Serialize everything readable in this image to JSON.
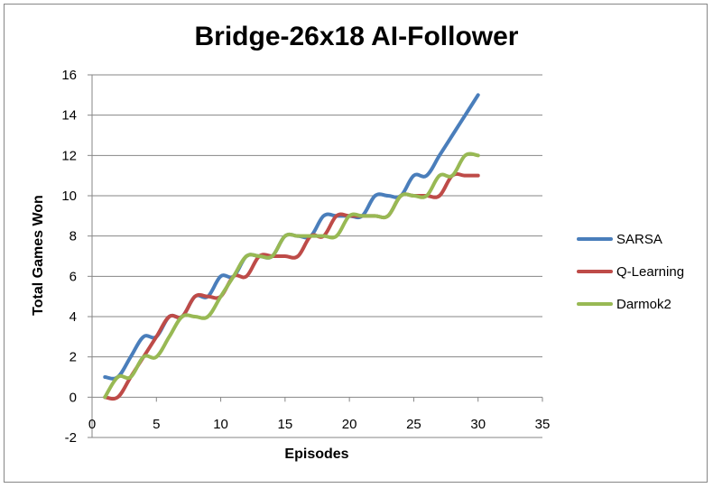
{
  "chart_data": {
    "type": "line",
    "title": "Bridge-26x18 AI-Follower",
    "xlabel": "Episodes",
    "ylabel": "Total Games Won",
    "xlim": [
      0,
      35
    ],
    "ylim": [
      -2,
      16
    ],
    "x_ticks": [
      "0",
      "5",
      "10",
      "15",
      "20",
      "25",
      "30",
      "35"
    ],
    "y_ticks": [
      "-2",
      "0",
      "2",
      "4",
      "6",
      "8",
      "10",
      "12",
      "14",
      "16"
    ],
    "grid": true,
    "legend_position": "right",
    "x": [
      1,
      2,
      3,
      4,
      5,
      6,
      7,
      8,
      9,
      10,
      11,
      12,
      13,
      14,
      15,
      16,
      17,
      18,
      19,
      20,
      21,
      22,
      23,
      24,
      25,
      26,
      27,
      28,
      29,
      30
    ],
    "series": [
      {
        "name": "SARSA",
        "color": "#4A7EBB",
        "values": [
          1,
          1,
          2,
          3,
          3,
          4,
          4,
          5,
          5,
          6,
          6,
          7,
          7,
          7,
          8,
          8,
          8,
          9,
          9,
          9,
          9,
          10,
          10,
          10,
          11,
          11,
          12,
          13,
          14,
          15
        ]
      },
      {
        "name": "Q-Learning",
        "color": "#BE4B48",
        "values": [
          0,
          0,
          1,
          2,
          3,
          4,
          4,
          5,
          5,
          5,
          6,
          6,
          7,
          7,
          7,
          7,
          8,
          8,
          9,
          9,
          9,
          9,
          9,
          10,
          10,
          10,
          10,
          11,
          11,
          11
        ]
      },
      {
        "name": "Darmok2",
        "color": "#98B954",
        "values": [
          0,
          1,
          1,
          2,
          2,
          3,
          4,
          4,
          4,
          5,
          6,
          7,
          7,
          7,
          8,
          8,
          8,
          8,
          8,
          9,
          9,
          9,
          9,
          10,
          10,
          10,
          11,
          11,
          12,
          12
        ]
      }
    ]
  }
}
